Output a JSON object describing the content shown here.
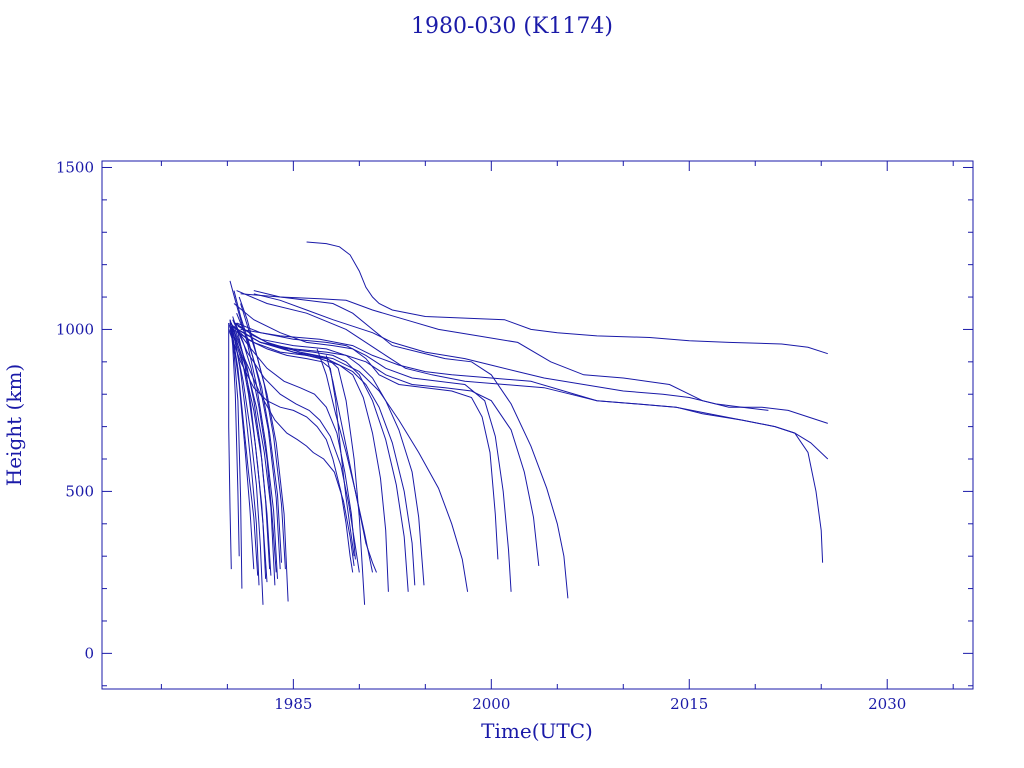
{
  "chart_data": {
    "type": "line",
    "title": "1980-030 (K1174)",
    "xlabel": "Time(UTC)",
    "ylabel": "Height (km)",
    "xlim": [
      1970.5,
      2036.5
    ],
    "ylim": [
      -110,
      1520
    ],
    "x_ticks": [
      1985,
      2000,
      2015,
      2030
    ],
    "y_ticks": [
      0,
      500,
      1000,
      1500
    ],
    "grid": false,
    "line_color": "#1a1aa8",
    "series": [
      {
        "x": [
          1980.1,
          1980.4,
          1980.8,
          1981.2,
          1981.6,
          1982.0,
          1982.3
        ],
        "y": [
          1020,
          980,
          880,
          720,
          560,
          420,
          240
        ]
      },
      {
        "x": [
          1980.2,
          1980.5,
          1980.9,
          1981.3,
          1981.7,
          1982.0
        ],
        "y": [
          1000,
          950,
          830,
          650,
          450,
          260
        ]
      },
      {
        "x": [
          1980.3,
          1980.6,
          1981.0,
          1981.4,
          1981.8,
          1982.2,
          1982.4
        ],
        "y": [
          1010,
          960,
          870,
          740,
          580,
          400,
          210
        ]
      },
      {
        "x": [
          1980.3,
          1980.7,
          1981.2,
          1981.7,
          1982.2,
          1982.5,
          1982.7
        ],
        "y": [
          1020,
          940,
          840,
          700,
          520,
          330,
          150
        ]
      },
      {
        "x": [
          1980.4,
          1980.8,
          1981.3,
          1981.8,
          1982.3,
          1982.7,
          1982.9
        ],
        "y": [
          1040,
          990,
          900,
          760,
          580,
          400,
          230
        ]
      },
      {
        "x": [
          1980.2,
          1980.6,
          1981.1,
          1981.6,
          1982.1,
          1982.6,
          1983.0
        ],
        "y": [
          1030,
          980,
          910,
          800,
          650,
          460,
          220
        ]
      },
      {
        "x": [
          1980.5,
          1981.0,
          1981.5,
          1982.0,
          1982.5,
          1982.9,
          1983.2
        ],
        "y": [
          1010,
          950,
          880,
          780,
          640,
          470,
          260
        ]
      },
      {
        "x": [
          1980.3,
          1980.8,
          1981.4,
          1982.0,
          1982.6,
          1983.0,
          1983.3
        ],
        "y": [
          1000,
          940,
          860,
          750,
          600,
          430,
          240
        ]
      },
      {
        "x": [
          1980.6,
          1981.2,
          1981.8,
          1982.4,
          1983.0,
          1983.4,
          1983.7
        ],
        "y": [
          1020,
          960,
          880,
          760,
          600,
          420,
          250
        ]
      },
      {
        "x": [
          1980.4,
          1981.0,
          1981.6,
          1982.2,
          1982.8,
          1983.3,
          1983.6
        ],
        "y": [
          990,
          930,
          860,
          760,
          620,
          450,
          210
        ]
      },
      {
        "x": [
          1980.7,
          1981.3,
          1981.9,
          1982.6,
          1983.2,
          1983.8,
          1984.1
        ],
        "y": [
          1050,
          990,
          920,
          820,
          680,
          490,
          280
        ]
      },
      {
        "x": [
          1980.2,
          1980.8,
          1981.5,
          1982.2,
          1982.9,
          1983.5,
          1983.8
        ],
        "y": [
          1150,
          1060,
          960,
          830,
          650,
          440,
          230
        ]
      },
      {
        "x": [
          1980.5,
          1981.0,
          1981.7,
          1982.4,
          1983.1,
          1983.7,
          1984.0
        ],
        "y": [
          1120,
          1040,
          950,
          840,
          690,
          480,
          260
        ]
      },
      {
        "x": [
          1980.9,
          1981.5,
          1982.1,
          1982.8,
          1983.5,
          1984.1,
          1984.4
        ],
        "y": [
          1100,
          1030,
          940,
          830,
          670,
          460,
          260
        ]
      },
      {
        "x": [
          1981.0,
          1981.6,
          1982.3,
          1983.0,
          1983.7,
          1984.3,
          1984.6
        ],
        "y": [
          1080,
          1000,
          910,
          800,
          650,
          430,
          160
        ]
      },
      {
        "x": [
          1980.1,
          1980.1,
          1980.2,
          1980.3
        ],
        "y": [
          1020,
          700,
          450,
          260
        ]
      },
      {
        "x": [
          1980.2,
          1980.4,
          1980.6,
          1980.8,
          1980.9
        ],
        "y": [
          1030,
          950,
          800,
          500,
          300
        ]
      },
      {
        "x": [
          1980.3,
          1980.5,
          1980.8,
          1981.0,
          1981.1
        ],
        "y": [
          1010,
          930,
          780,
          480,
          200
        ]
      },
      {
        "x": [
          1980.1,
          1981.0,
          1982.0,
          1983.0,
          1984.0,
          1985.0,
          1986.0,
          1986.8,
          1987.5,
          1988.0,
          1988.6,
          1989.0,
          1989.3,
          1989.5
        ],
        "y": [
          1000,
          900,
          820,
          780,
          760,
          750,
          730,
          700,
          660,
          600,
          500,
          400,
          300,
          250
        ]
      },
      {
        "x": [
          1980.3,
          1981.3,
          1982.5,
          1983.6,
          1984.5,
          1985.3,
          1986.0,
          1986.5,
          1987.3,
          1988.1,
          1988.8,
          1989.3,
          1989.6
        ],
        "y": [
          1020,
          910,
          800,
          720,
          680,
          660,
          640,
          620,
          600,
          560,
          470,
          360,
          270
        ]
      },
      {
        "x": [
          1980.4,
          1981.5,
          1982.8,
          1984.0,
          1985.2,
          1986.2,
          1987.0,
          1987.8,
          1988.6,
          1989.2,
          1989.7,
          1990.0
        ],
        "y": [
          1030,
          930,
          850,
          800,
          770,
          750,
          720,
          670,
          580,
          460,
          330,
          250
        ]
      },
      {
        "x": [
          1980.5,
          1981.8,
          1983.0,
          1984.3,
          1985.5,
          1986.6,
          1987.5,
          1988.3,
          1988.9,
          1989.4,
          1989.7
        ],
        "y": [
          1010,
          940,
          880,
          840,
          820,
          800,
          760,
          680,
          560,
          430,
          290
        ]
      },
      {
        "x": [
          1980.2,
          1981.5,
          1983.0,
          1984.5,
          1986.0,
          1987.2,
          1987.8,
          1988.2,
          1988.6,
          1989.0,
          1989.4,
          1989.6
        ],
        "y": [
          1020,
          970,
          940,
          920,
          910,
          900,
          880,
          780,
          620,
          480,
          360,
          300
        ]
      },
      {
        "x": [
          1980.6,
          1982.0,
          1983.5,
          1985.0,
          1986.5,
          1987.6,
          1988.4,
          1989.0,
          1989.6,
          1990.0,
          1990.4
        ],
        "y": [
          1020,
          980,
          950,
          930,
          920,
          910,
          880,
          780,
          600,
          420,
          150
        ]
      },
      {
        "x": [
          1987.5,
          1988.0,
          1988.5,
          1989.0,
          1989.5,
          1990.0,
          1990.5,
          1991.0,
          1991.3
        ],
        "y": [
          920,
          840,
          740,
          640,
          540,
          440,
          340,
          280,
          250
        ]
      },
      {
        "x": [
          1986.8,
          1987.5,
          1988.2,
          1989.0,
          1989.7,
          1990.4,
          1991.0
        ],
        "y": [
          940,
          860,
          740,
          620,
          500,
          370,
          250
        ]
      },
      {
        "x": [
          1980.4,
          1982.0,
          1984.0,
          1986.0,
          1987.5,
          1988.5,
          1989.5,
          1990.3,
          1991.0,
          1991.6,
          1992.0,
          1992.2
        ],
        "y": [
          1000,
          960,
          930,
          920,
          910,
          890,
          860,
          790,
          680,
          540,
          380,
          190
        ]
      },
      {
        "x": [
          1980.8,
          1982.5,
          1984.5,
          1986.5,
          1988.0,
          1989.0,
          1990.0,
          1991.0,
          1992.0,
          1992.8,
          1993.4,
          1993.7
        ],
        "y": [
          1000,
          960,
          940,
          930,
          920,
          900,
          860,
          780,
          660,
          520,
          360,
          190
        ]
      },
      {
        "x": [
          1980.3,
          1982.5,
          1985.0,
          1987.0,
          1988.5,
          1989.5,
          1990.5,
          1991.5,
          1992.5,
          1993.4,
          1994.0,
          1994.2
        ],
        "y": [
          1010,
          960,
          930,
          910,
          890,
          870,
          830,
          760,
          650,
          500,
          340,
          210
        ]
      },
      {
        "x": [
          1980.5,
          1982.5,
          1985.0,
          1987.5,
          1989.0,
          1990.0,
          1991.0,
          1992.0,
          1993.0,
          1994.0,
          1994.5,
          1994.9
        ],
        "y": [
          1020,
          970,
          950,
          940,
          920,
          890,
          850,
          780,
          690,
          560,
          420,
          210
        ]
      },
      {
        "x": [
          1980.8,
          1983.0,
          1985.5,
          1988.0,
          1990.0,
          1991.5,
          1993.0,
          1994.5,
          1996.0,
          1997.0,
          1997.8,
          1998.2
        ],
        "y": [
          1010,
          960,
          930,
          910,
          870,
          810,
          720,
          620,
          510,
          400,
          290,
          190
        ]
      },
      {
        "x": [
          1980.5,
          1982.0,
          1984.0,
          1986.0,
          1988.0,
          1989.5,
          1990.5,
          1991.5,
          1993.0,
          1995.0,
          1997.0,
          1998.5,
          1999.3,
          1999.9,
          2000.3,
          2000.5
        ],
        "y": [
          1080,
          1030,
          990,
          960,
          950,
          940,
          910,
          860,
          830,
          820,
          810,
          790,
          730,
          620,
          430,
          290
        ]
      },
      {
        "x": [
          1980.7,
          1982.5,
          1985.0,
          1987.5,
          1989.0,
          1990.5,
          1992.0,
          1994.0,
          1996.0,
          1998.0,
          1999.5,
          2000.3,
          2000.9,
          2001.3,
          2001.5
        ],
        "y": [
          1020,
          990,
          970,
          960,
          950,
          920,
          880,
          850,
          840,
          830,
          780,
          670,
          500,
          320,
          190
        ]
      },
      {
        "x": [
          1980.8,
          1982.5,
          1985.0,
          1987.5,
          1989.0,
          1990.5,
          1992.0,
          1994.0,
          1996.5,
          1998.5,
          2000.0,
          2001.5,
          2002.5,
          2003.2,
          2003.6
        ],
        "y": [
          1000,
          960,
          940,
          930,
          920,
          900,
          860,
          830,
          820,
          810,
          780,
          690,
          560,
          420,
          270
        ]
      },
      {
        "x": [
          1982.0,
          1984.0,
          1986.0,
          1988.0,
          1989.5,
          1991.0,
          1992.5,
          1994.5,
          1996.5,
          1998.5,
          2000.0,
          2001.5,
          2003.0,
          2004.2,
          2005.0,
          2005.5,
          2005.8
        ],
        "y": [
          1120,
          1100,
          1090,
          1080,
          1050,
          1000,
          950,
          930,
          910,
          900,
          860,
          770,
          640,
          510,
          400,
          300,
          170
        ]
      },
      {
        "x": [
          1980.7,
          1983.0,
          1986.0,
          1989.0,
          1990.5,
          1992.0,
          1993.5,
          1995.5,
          1998.0,
          2001.0,
          2004.0,
          2006.0,
          2008.0,
          2011.0,
          2014.0,
          2016.0,
          2019.0,
          2021.5,
          2023.0,
          2024.0,
          2024.6,
          2025.0,
          2025.1
        ],
        "y": [
          1120,
          1080,
          1050,
          1000,
          960,
          920,
          880,
          860,
          840,
          830,
          820,
          800,
          780,
          770,
          760,
          740,
          720,
          700,
          680,
          620,
          500,
          380,
          280
        ]
      },
      {
        "x": [
          1981.0,
          1984.0,
          1987.0,
          1989.5,
          1991.0,
          1993.0,
          1995.0,
          1997.0,
          2000.0,
          2003.0,
          2005.5,
          2008.0,
          2011.0,
          2014.0,
          2016.5,
          2019.0,
          2021.5,
          2023.0,
          2024.2,
          2025.5
        ],
        "y": [
          1000,
          980,
          970,
          950,
          920,
          890,
          870,
          860,
          850,
          840,
          810,
          780,
          770,
          760,
          740,
          720,
          700,
          680,
          650,
          600
        ]
      },
      {
        "x": [
          1981.0,
          1984.0,
          1987.0,
          1989.0,
          1991.0,
          1993.5,
          1996.0,
          1999.0,
          2002.0,
          2004.5,
          2007.0,
          2010.0,
          2013.5,
          2016.0,
          2018.0,
          2020.5,
          2022.5,
          2024.0,
          2025.5
        ],
        "y": [
          1110,
          1100,
          1095,
          1090,
          1060,
          1030,
          1000,
          980,
          960,
          900,
          860,
          850,
          830,
          780,
          760,
          760,
          750,
          730,
          710
        ]
      },
      {
        "x": [
          1986.0,
          1987.5,
          1988.5,
          1989.3,
          1990.0,
          1990.5,
          1991.0,
          1991.5,
          1992.5,
          1995.0,
          1998.0,
          2001.0,
          2003.0,
          2005.0,
          2008.0,
          2012.0,
          2015.0,
          2018.0,
          2022.0,
          2024.0,
          2025.5
        ],
        "y": [
          1270,
          1265,
          1255,
          1230,
          1180,
          1130,
          1100,
          1080,
          1060,
          1040,
          1035,
          1030,
          1000,
          990,
          980,
          975,
          965,
          960,
          955,
          945,
          925
        ]
      },
      {
        "x": [
          1982.0,
          1984.0,
          1986.0,
          1988.0,
          1989.5,
          1991.0,
          1992.5,
          1995.0,
          1998.0,
          2000.0,
          2002.0,
          2004.0,
          2007.0,
          2010.0,
          2013.0,
          2015.0,
          2017.0,
          2019.0,
          2021.0
        ],
        "y": [
          1110,
          1090,
          1060,
          1030,
          1010,
          990,
          960,
          930,
          910,
          890,
          870,
          850,
          830,
          810,
          800,
          790,
          770,
          760,
          750
        ]
      }
    ]
  }
}
